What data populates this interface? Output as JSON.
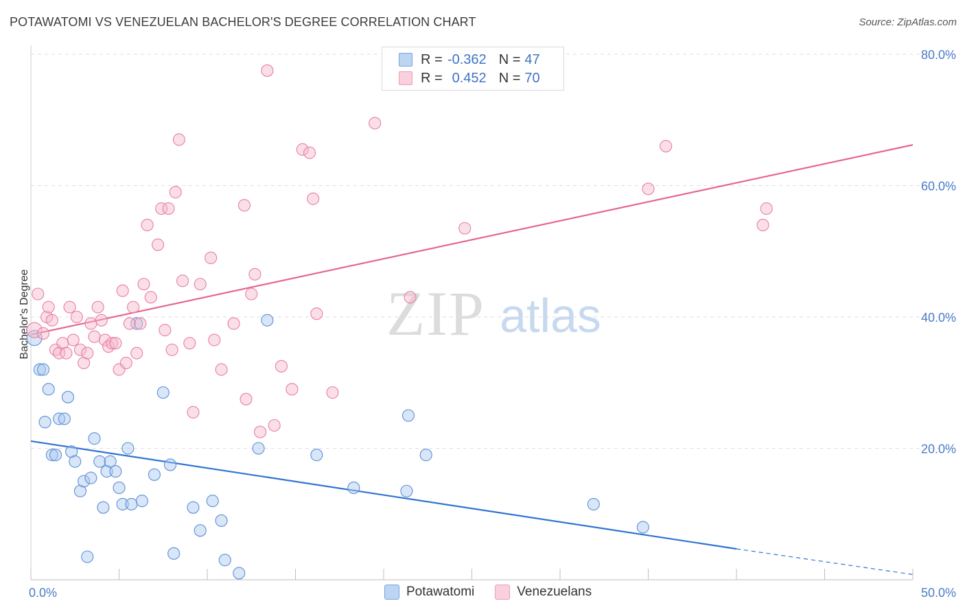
{
  "header": {
    "title": "POTAWATOMI VS VENEZUELAN BACHELOR'S DEGREE CORRELATION CHART",
    "source": "Source: ZipAtlas.com"
  },
  "watermark": {
    "zip": "ZIP",
    "atlas": "atlas"
  },
  "legend_top": {
    "rows": [
      {
        "r_key": "R =",
        "r_value": "-0.362",
        "n_key": "N =",
        "n_value": "47",
        "color": "#a8c8f0"
      },
      {
        "r_key": "R =",
        "r_value": "0.452",
        "n_key": "N =",
        "n_value": "70",
        "color": "#f7b8cb"
      }
    ]
  },
  "legend_bottom": {
    "items": [
      "Potawatomi",
      "Venezuelans"
    ]
  },
  "chart_data": {
    "type": "scatter",
    "title": "POTAWATOMI VS VENEZUELAN BACHELOR'S DEGREE CORRELATION CHART",
    "xlabel": "",
    "ylabel": "Bachelor's Degree",
    "xlim": [
      0,
      50
    ],
    "ylim": [
      0,
      80
    ],
    "x_tick_labels": [
      "0.0%",
      "50.0%"
    ],
    "y_ticks": [
      20,
      40,
      60,
      80
    ],
    "y_tick_labels": [
      "20.0%",
      "40.0%",
      "60.0%",
      "80.0%"
    ],
    "grid": "horizontal dashed",
    "legend_position": "top-center",
    "series": [
      {
        "name": "Potawatomi",
        "color": "#5b8fd6",
        "fill": "#a8c8f0",
        "trend": {
          "x": [
            0,
            40
          ],
          "y": [
            21.1,
            4.7
          ],
          "dashed_to": [
            50,
            0.8
          ],
          "color": "#2f73d2"
        },
        "points": [
          [
            0.2,
            36.8
          ],
          [
            0.5,
            32.0
          ],
          [
            0.7,
            32.0
          ],
          [
            0.8,
            24.0
          ],
          [
            1.0,
            29.0
          ],
          [
            1.2,
            19.0
          ],
          [
            1.4,
            19.0
          ],
          [
            1.6,
            24.5
          ],
          [
            1.9,
            24.5
          ],
          [
            2.1,
            27.8
          ],
          [
            2.3,
            19.5
          ],
          [
            2.5,
            18.0
          ],
          [
            2.8,
            13.5
          ],
          [
            3.0,
            15.0
          ],
          [
            3.2,
            3.5
          ],
          [
            3.4,
            15.5
          ],
          [
            3.6,
            21.5
          ],
          [
            3.9,
            18.0
          ],
          [
            4.1,
            11.0
          ],
          [
            4.3,
            16.5
          ],
          [
            4.5,
            18.0
          ],
          [
            4.8,
            16.5
          ],
          [
            5.0,
            14.0
          ],
          [
            5.2,
            11.5
          ],
          [
            5.5,
            20.0
          ],
          [
            5.7,
            11.5
          ],
          [
            6.0,
            39.0
          ],
          [
            6.3,
            12.0
          ],
          [
            7.0,
            16.0
          ],
          [
            7.5,
            28.5
          ],
          [
            7.9,
            17.5
          ],
          [
            8.1,
            4.0
          ],
          [
            9.2,
            11.0
          ],
          [
            9.6,
            7.5
          ],
          [
            10.3,
            12.0
          ],
          [
            10.8,
            9.0
          ],
          [
            11.0,
            3.0
          ],
          [
            11.8,
            1.0
          ],
          [
            12.9,
            20.0
          ],
          [
            13.4,
            39.5
          ],
          [
            16.2,
            19.0
          ],
          [
            18.3,
            14.0
          ],
          [
            21.3,
            13.5
          ],
          [
            21.4,
            25.0
          ],
          [
            22.4,
            19.0
          ],
          [
            31.9,
            11.5
          ],
          [
            34.7,
            8.0
          ]
        ]
      },
      {
        "name": "Venezuelans",
        "color": "#e77fa0",
        "fill": "#f7b8cb",
        "trend": {
          "x": [
            0,
            50
          ],
          "y": [
            37.3,
            66.2
          ],
          "color": "#e46690"
        },
        "points": [
          [
            0.2,
            38.0
          ],
          [
            0.4,
            43.5
          ],
          [
            0.7,
            37.5
          ],
          [
            0.9,
            40.0
          ],
          [
            1.0,
            41.5
          ],
          [
            1.2,
            39.5
          ],
          [
            1.4,
            35.0
          ],
          [
            1.6,
            34.5
          ],
          [
            1.8,
            36.0
          ],
          [
            2.0,
            34.5
          ],
          [
            2.2,
            41.5
          ],
          [
            2.4,
            36.5
          ],
          [
            2.6,
            40.0
          ],
          [
            2.8,
            35.0
          ],
          [
            3.0,
            33.0
          ],
          [
            3.2,
            34.5
          ],
          [
            3.4,
            39.0
          ],
          [
            3.6,
            37.0
          ],
          [
            3.8,
            41.5
          ],
          [
            4.0,
            39.5
          ],
          [
            4.2,
            36.5
          ],
          [
            4.4,
            35.5
          ],
          [
            4.6,
            36.0
          ],
          [
            4.8,
            36.0
          ],
          [
            5.0,
            32.0
          ],
          [
            5.2,
            44.0
          ],
          [
            5.4,
            33.0
          ],
          [
            5.6,
            39.0
          ],
          [
            5.8,
            41.5
          ],
          [
            6.0,
            34.5
          ],
          [
            6.2,
            39.0
          ],
          [
            6.4,
            45.0
          ],
          [
            6.6,
            54.0
          ],
          [
            6.8,
            43.0
          ],
          [
            7.2,
            51.0
          ],
          [
            7.4,
            56.5
          ],
          [
            7.6,
            38.0
          ],
          [
            7.8,
            56.5
          ],
          [
            8.0,
            35.0
          ],
          [
            8.2,
            59.0
          ],
          [
            8.4,
            67.0
          ],
          [
            8.6,
            45.5
          ],
          [
            9.0,
            36.0
          ],
          [
            9.2,
            25.5
          ],
          [
            9.6,
            45.0
          ],
          [
            10.2,
            49.0
          ],
          [
            10.4,
            36.5
          ],
          [
            10.8,
            32.0
          ],
          [
            11.5,
            39.0
          ],
          [
            12.1,
            57.0
          ],
          [
            12.2,
            27.5
          ],
          [
            12.5,
            43.5
          ],
          [
            12.7,
            46.5
          ],
          [
            13.0,
            22.5
          ],
          [
            13.4,
            77.5
          ],
          [
            13.8,
            23.5
          ],
          [
            14.2,
            32.5
          ],
          [
            14.8,
            29.0
          ],
          [
            15.4,
            65.5
          ],
          [
            15.8,
            65.0
          ],
          [
            16.0,
            58.0
          ],
          [
            16.2,
            40.5
          ],
          [
            17.1,
            28.5
          ],
          [
            19.5,
            69.5
          ],
          [
            21.5,
            43.0
          ],
          [
            24.6,
            53.5
          ],
          [
            35.0,
            59.5
          ],
          [
            36.0,
            66.0
          ],
          [
            41.5,
            54.0
          ],
          [
            41.7,
            56.5
          ]
        ]
      }
    ]
  }
}
